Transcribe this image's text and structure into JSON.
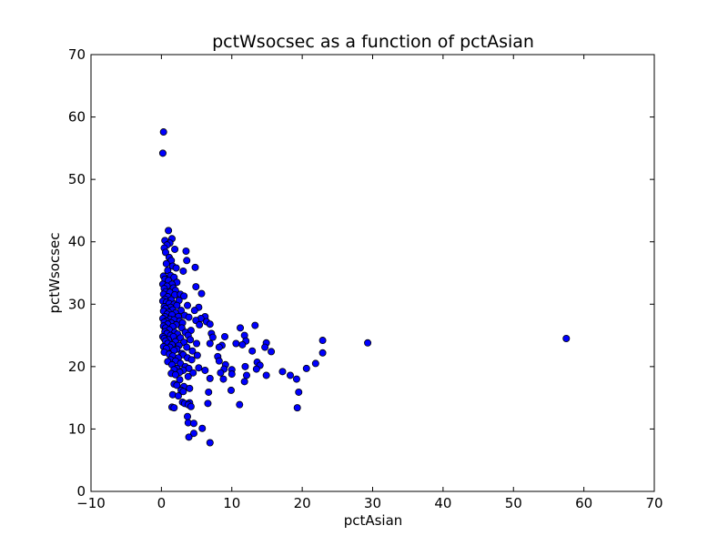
{
  "chart_data": {
    "type": "scatter",
    "title": "pctWsocsec as a function of pctAsian",
    "xlabel": "pctAsian",
    "ylabel": "pctWsocsec",
    "xlim": [
      -10,
      70
    ],
    "ylim": [
      0,
      70
    ],
    "xticks": [
      "−10",
      "0",
      "10",
      "20",
      "30",
      "40",
      "50",
      "60",
      "70"
    ],
    "yticks": [
      "0",
      "10",
      "20",
      "30",
      "40",
      "50",
      "60",
      "70"
    ],
    "grid": false,
    "marker_color": "#0000ff",
    "points": [
      [
        0.3,
        57.6
      ],
      [
        0.2,
        54.2
      ],
      [
        1.0,
        41.8
      ],
      [
        1.5,
        40.5
      ],
      [
        0.5,
        40.2
      ],
      [
        1.2,
        39.8
      ],
      [
        0.8,
        39.5
      ],
      [
        0.4,
        39.0
      ],
      [
        1.9,
        38.8
      ],
      [
        3.5,
        38.5
      ],
      [
        0.6,
        38.3
      ],
      [
        1.1,
        37.5
      ],
      [
        1.4,
        37.0
      ],
      [
        3.6,
        37.0
      ],
      [
        0.7,
        36.5
      ],
      [
        1.6,
        36.1
      ],
      [
        2.1,
        35.8
      ],
      [
        4.8,
        35.9
      ],
      [
        0.9,
        35.4
      ],
      [
        3.1,
        35.3
      ],
      [
        0.3,
        34.5
      ],
      [
        1.3,
        34.6
      ],
      [
        1.8,
        34.3
      ],
      [
        0.5,
        34.0
      ],
      [
        1.0,
        33.8
      ],
      [
        2.2,
        33.5
      ],
      [
        0.2,
        33.2
      ],
      [
        1.5,
        33.2
      ],
      [
        0.8,
        32.9
      ],
      [
        4.9,
        32.8
      ],
      [
        1.7,
        32.6
      ],
      [
        0.4,
        32.5
      ],
      [
        2.0,
        32.2
      ],
      [
        0.6,
        32.0
      ],
      [
        1.2,
        31.9
      ],
      [
        5.7,
        31.7
      ],
      [
        0.3,
        31.6
      ],
      [
        1.9,
        31.5
      ],
      [
        2.7,
        31.6
      ],
      [
        0.9,
        31.2
      ],
      [
        3.2,
        31.3
      ],
      [
        0.5,
        30.8
      ],
      [
        1.4,
        30.7
      ],
      [
        2.5,
        30.6
      ],
      [
        0.2,
        30.5
      ],
      [
        0.7,
        30.3
      ],
      [
        1.1,
        30.1
      ],
      [
        1.8,
        30.0
      ],
      [
        2.2,
        29.8
      ],
      [
        3.7,
        29.8
      ],
      [
        0.4,
        29.6
      ],
      [
        1.3,
        29.5
      ],
      [
        5.3,
        29.5
      ],
      [
        0.6,
        29.3
      ],
      [
        1.6,
        29.1
      ],
      [
        2.8,
        29.0
      ],
      [
        4.7,
        29.0
      ],
      [
        0.3,
        28.9
      ],
      [
        1.0,
        28.7
      ],
      [
        2.0,
        28.6
      ],
      [
        0.8,
        28.4
      ],
      [
        1.5,
        28.3
      ],
      [
        3.3,
        28.2
      ],
      [
        0.5,
        28.0
      ],
      [
        2.4,
        28.0
      ],
      [
        3.9,
        27.9
      ],
      [
        6.2,
        28.0
      ],
      [
        0.2,
        27.7
      ],
      [
        1.2,
        27.6
      ],
      [
        1.8,
        27.5
      ],
      [
        5.6,
        27.7
      ],
      [
        0.7,
        27.3
      ],
      [
        2.6,
        27.3
      ],
      [
        4.9,
        27.4
      ],
      [
        0.4,
        27.1
      ],
      [
        1.4,
        27.0
      ],
      [
        3.0,
        27.0
      ],
      [
        6.4,
        27.2
      ],
      [
        0.9,
        26.8
      ],
      [
        2.1,
        26.7
      ],
      [
        5.4,
        26.7
      ],
      [
        6.9,
        26.8
      ],
      [
        0.3,
        26.5
      ],
      [
        1.6,
        26.4
      ],
      [
        11.2,
        26.2
      ],
      [
        13.3,
        26.6
      ],
      [
        0.6,
        26.2
      ],
      [
        2.9,
        26.2
      ],
      [
        1.1,
        25.9
      ],
      [
        4.2,
        25.8
      ],
      [
        0.5,
        25.6
      ],
      [
        1.9,
        25.5
      ],
      [
        3.4,
        25.5
      ],
      [
        0.8,
        25.3
      ],
      [
        2.3,
        25.2
      ],
      [
        7.1,
        25.3
      ],
      [
        1.3,
        25.0
      ],
      [
        3.8,
        25.0
      ],
      [
        0.2,
        24.8
      ],
      [
        1.7,
        24.8
      ],
      [
        9.0,
        24.8
      ],
      [
        11.8,
        25.0
      ],
      [
        0.4,
        24.5
      ],
      [
        2.7,
        24.6
      ],
      [
        7.3,
        24.7
      ],
      [
        22.9,
        24.2
      ],
      [
        57.5,
        24.5
      ],
      [
        1.0,
        24.3
      ],
      [
        4.1,
        24.3
      ],
      [
        12.0,
        24.1
      ],
      [
        0.6,
        24.1
      ],
      [
        2.0,
        24.0
      ],
      [
        3.2,
        23.9
      ],
      [
        0.9,
        23.7
      ],
      [
        5.0,
        23.7
      ],
      [
        6.9,
        23.7
      ],
      [
        10.6,
        23.7
      ],
      [
        14.9,
        23.8
      ],
      [
        29.3,
        23.8
      ],
      [
        1.5,
        23.5
      ],
      [
        2.5,
        23.4
      ],
      [
        8.6,
        23.4
      ],
      [
        11.5,
        23.5
      ],
      [
        0.3,
        23.2
      ],
      [
        1.2,
        23.1
      ],
      [
        3.6,
        23.1
      ],
      [
        8.2,
        23.1
      ],
      [
        14.7,
        23.1
      ],
      [
        0.7,
        22.9
      ],
      [
        2.2,
        22.8
      ],
      [
        1.8,
        22.6
      ],
      [
        4.4,
        22.5
      ],
      [
        12.9,
        22.5
      ],
      [
        15.6,
        22.4
      ],
      [
        22.9,
        22.2
      ],
      [
        0.4,
        22.3
      ],
      [
        2.9,
        22.1
      ],
      [
        1.1,
        22.0
      ],
      [
        3.1,
        21.9
      ],
      [
        5.1,
        21.8
      ],
      [
        1.6,
        21.7
      ],
      [
        8.0,
        21.6
      ],
      [
        2.4,
        21.4
      ],
      [
        3.7,
        21.4
      ],
      [
        4.3,
        21.1
      ],
      [
        1.3,
        21.1
      ],
      [
        2.0,
        20.9
      ],
      [
        0.9,
        20.8
      ],
      [
        8.2,
        20.9
      ],
      [
        13.6,
        20.7
      ],
      [
        21.9,
        20.5
      ],
      [
        2.7,
        20.5
      ],
      [
        1.5,
        20.3
      ],
      [
        9.1,
        20.3
      ],
      [
        14.0,
        20.2
      ],
      [
        3.4,
        20.0
      ],
      [
        11.9,
        20.0
      ],
      [
        5.3,
        19.8
      ],
      [
        20.6,
        19.7
      ],
      [
        2.2,
        19.7
      ],
      [
        3.9,
        19.7
      ],
      [
        8.9,
        19.6
      ],
      [
        13.5,
        19.6
      ],
      [
        1.8,
        19.5
      ],
      [
        3.1,
        19.4
      ],
      [
        6.2,
        19.4
      ],
      [
        10.0,
        19.5
      ],
      [
        17.2,
        19.2
      ],
      [
        2.6,
        19.1
      ],
      [
        4.5,
        19.0
      ],
      [
        8.4,
        19.0
      ],
      [
        1.4,
        18.9
      ],
      [
        2.0,
        18.7
      ],
      [
        10.0,
        18.8
      ],
      [
        12.1,
        18.6
      ],
      [
        14.9,
        18.6
      ],
      [
        18.3,
        18.6
      ],
      [
        3.8,
        18.4
      ],
      [
        6.9,
        18.1
      ],
      [
        8.8,
        18.0
      ],
      [
        19.2,
        18.0
      ],
      [
        2.6,
        17.9
      ],
      [
        11.8,
        17.6
      ],
      [
        1.8,
        17.2
      ],
      [
        2.2,
        17.0
      ],
      [
        3.2,
        16.8
      ],
      [
        4.0,
        16.5
      ],
      [
        2.8,
        16.2
      ],
      [
        9.9,
        16.2
      ],
      [
        3.1,
        16.0
      ],
      [
        6.7,
        15.9
      ],
      [
        19.5,
        15.9
      ],
      [
        1.6,
        15.5
      ],
      [
        2.4,
        15.3
      ],
      [
        3.0,
        14.3
      ],
      [
        3.3,
        14.1
      ],
      [
        4.0,
        14.2
      ],
      [
        6.6,
        14.1
      ],
      [
        3.8,
        13.9
      ],
      [
        11.1,
        13.9
      ],
      [
        1.5,
        13.5
      ],
      [
        1.8,
        13.4
      ],
      [
        19.3,
        13.4
      ],
      [
        4.2,
        13.6
      ],
      [
        3.7,
        12.0
      ],
      [
        3.8,
        11.0
      ],
      [
        4.6,
        10.9
      ],
      [
        5.8,
        10.1
      ],
      [
        4.6,
        9.3
      ],
      [
        3.9,
        8.7
      ],
      [
        6.9,
        7.8
      ]
    ]
  }
}
